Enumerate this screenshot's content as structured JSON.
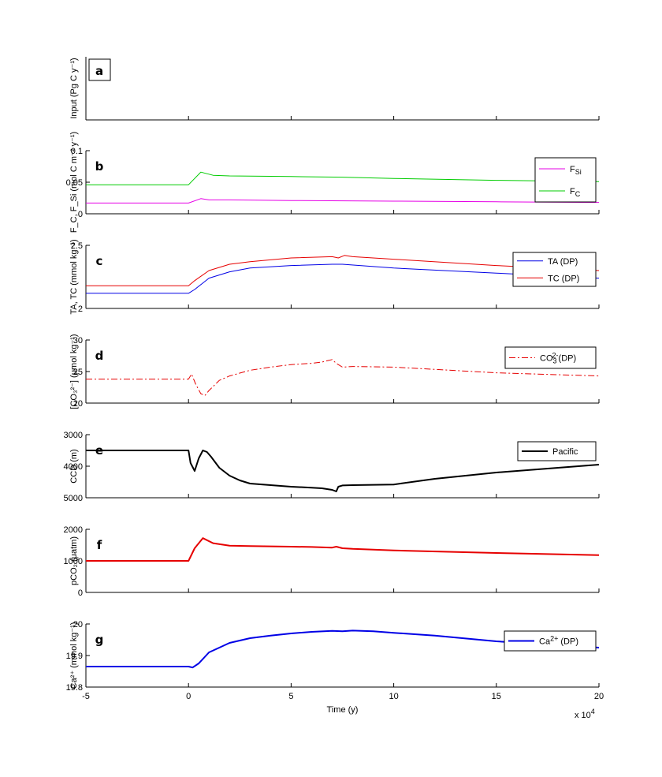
{
  "xaxis": {
    "xlabel": "Time (y)",
    "xlim": [
      -5,
      20
    ],
    "ticks": [
      -5,
      0,
      5,
      10,
      15,
      20
    ],
    "tick_labels": [
      "-5",
      "0",
      "5",
      "10",
      "15",
      "20"
    ],
    "multiplier": "x 10",
    "multiplier_exp": "4"
  },
  "chart_data": [
    {
      "type": "line",
      "panel": "a",
      "ylabel": "Input (Pg C y⁻¹)",
      "yticks": [],
      "ylim": [
        0,
        1
      ],
      "legend": false,
      "series": []
    },
    {
      "type": "line",
      "panel": "b",
      "ylabel": "F_C, F_Si (mol C m⁻² y⁻¹)",
      "ylim": [
        0,
        0.1
      ],
      "yticks": [
        0,
        0.05,
        0.1
      ],
      "ytick_labels": [
        "0",
        "0.05",
        "0.1"
      ],
      "legend": true,
      "series": [
        {
          "name": "F_Si",
          "legend_main": "F",
          "legend_sub": "Si",
          "color": "#e600e6",
          "width": 1,
          "dash": "",
          "x": [
            -5,
            0,
            0.6,
            1,
            2,
            5,
            10,
            15,
            20
          ],
          "y": [
            0.017,
            0.017,
            0.024,
            0.022,
            0.022,
            0.021,
            0.02,
            0.019,
            0.018
          ]
        },
        {
          "name": "F_C",
          "legend_main": "F",
          "legend_sub": "C",
          "color": "#00cc00",
          "width": 1,
          "dash": "",
          "x": [
            -5,
            0,
            0.6,
            1.2,
            2,
            5,
            7.5,
            10,
            15,
            20
          ],
          "y": [
            0.046,
            0.046,
            0.066,
            0.061,
            0.06,
            0.059,
            0.058,
            0.056,
            0.053,
            0.051
          ]
        }
      ]
    },
    {
      "type": "line",
      "panel": "c",
      "ylabel": "TA, TC (mmol kg⁻¹)",
      "ylim": [
        2,
        2.5
      ],
      "yticks": [
        2,
        2.5
      ],
      "ytick_labels": [
        "2",
        "2.5"
      ],
      "legend": true,
      "series": [
        {
          "name": "TA (DP)",
          "legend_main": "TA (DP)",
          "legend_sub": "",
          "color": "#0000e6",
          "width": 1,
          "dash": "",
          "x": [
            -5,
            0,
            0.3,
            1,
            2,
            3,
            5,
            7,
            7.5,
            10,
            15,
            20
          ],
          "y": [
            2.12,
            2.12,
            2.15,
            2.24,
            2.29,
            2.32,
            2.34,
            2.35,
            2.35,
            2.32,
            2.28,
            2.24
          ]
        },
        {
          "name": "TC (DP)",
          "legend_main": "TC (DP)",
          "legend_sub": "",
          "color": "#e60000",
          "width": 1,
          "dash": "",
          "x": [
            -5,
            0,
            0.3,
            1,
            2,
            3,
            5,
            7,
            7.3,
            7.6,
            8,
            10,
            15,
            20
          ],
          "y": [
            2.18,
            2.18,
            2.22,
            2.3,
            2.35,
            2.37,
            2.4,
            2.41,
            2.4,
            2.42,
            2.41,
            2.39,
            2.34,
            2.3
          ]
        }
      ]
    },
    {
      "type": "line",
      "panel": "d",
      "ylabel": "[CO₃²⁻] (μmol kg⁻¹)",
      "ylim": [
        20,
        30
      ],
      "yticks": [
        20,
        25,
        30
      ],
      "ytick_labels": [
        "20",
        "25",
        "30"
      ],
      "legend": true,
      "series": [
        {
          "name": "CO3 2- (DP)",
          "legend_main": "CO",
          "legend_sub": "3",
          "legend_sup": "2-",
          "legend_tail": "(DP)",
          "color": "#e60000",
          "width": 1,
          "dash": "8,3,2,3",
          "x": [
            -5,
            0,
            0.15,
            0.35,
            0.6,
            0.8,
            1,
            1.5,
            2,
            3,
            4,
            5,
            6,
            6.5,
            7,
            7.2,
            7.5,
            8,
            10,
            15,
            20
          ],
          "y": [
            23.8,
            23.8,
            24.6,
            23.0,
            21.5,
            21.2,
            22.0,
            23.6,
            24.3,
            25.2,
            25.7,
            26.1,
            26.3,
            26.5,
            26.9,
            26.3,
            25.7,
            25.8,
            25.7,
            24.8,
            24.3
          ]
        }
      ]
    },
    {
      "type": "line",
      "panel": "e",
      "ylabel": "CCD (m)",
      "ylim": [
        3000,
        5000
      ],
      "yreversed": true,
      "yticks": [
        3000,
        4000,
        5000
      ],
      "ytick_labels": [
        "3000",
        "4000",
        "5000"
      ],
      "legend": true,
      "series": [
        {
          "name": "Pacific",
          "legend_main": "Pacific",
          "legend_sub": "",
          "color": "#000000",
          "width": 2,
          "dash": "",
          "x": [
            -5,
            0,
            0.1,
            0.3,
            0.5,
            0.7,
            0.9,
            1.1,
            1.5,
            2,
            2.5,
            3,
            4,
            5,
            6,
            6.5,
            7,
            7.2,
            7.3,
            7.5,
            8,
            10,
            12,
            15,
            20
          ],
          "y": [
            3500,
            3500,
            3900,
            4150,
            3750,
            3500,
            3550,
            3700,
            4050,
            4300,
            4450,
            4550,
            4600,
            4650,
            4680,
            4700,
            4750,
            4800,
            4650,
            4610,
            4600,
            4580,
            4400,
            4200,
            3950
          ]
        }
      ]
    },
    {
      "type": "line",
      "panel": "f",
      "ylabel": "pCO₂ (μatm)",
      "ylim": [
        0,
        2000
      ],
      "yticks": [
        0,
        1000,
        2000
      ],
      "ytick_labels": [
        "0",
        "1000",
        "2000"
      ],
      "legend": false,
      "series": [
        {
          "name": "pCO2",
          "color": "#e60000",
          "width": 2,
          "dash": "",
          "x": [
            -5,
            0,
            0.3,
            0.7,
            1.2,
            2,
            3,
            5,
            6,
            7,
            7.2,
            7.5,
            8,
            10,
            15,
            20
          ],
          "y": [
            1000,
            1000,
            1400,
            1720,
            1560,
            1480,
            1470,
            1450,
            1440,
            1420,
            1450,
            1400,
            1380,
            1330,
            1250,
            1180
          ]
        }
      ]
    },
    {
      "type": "line",
      "panel": "g",
      "ylabel": "Ca²⁺ (mmol kg⁻¹)",
      "ylim": [
        19.8,
        20
      ],
      "yticks": [
        19.8,
        19.9,
        20
      ],
      "ytick_labels": [
        "19.8",
        "19.9",
        "20"
      ],
      "legend": true,
      "series": [
        {
          "name": "Ca2+ (DP)",
          "legend_main": "Ca",
          "legend_sub": "",
          "legend_sup": "2+",
          "legend_tail": " (DP)",
          "color": "#0000e6",
          "width": 2,
          "dash": "",
          "x": [
            -5,
            0,
            0.2,
            0.5,
            1,
            1.5,
            2,
            3,
            4,
            5,
            6,
            7,
            7.5,
            8,
            9,
            10,
            12,
            15,
            20
          ],
          "y": [
            19.865,
            19.865,
            19.862,
            19.875,
            19.91,
            19.925,
            19.94,
            19.955,
            19.963,
            19.97,
            19.975,
            19.978,
            19.977,
            19.979,
            19.977,
            19.972,
            19.963,
            19.945,
            19.925
          ]
        }
      ]
    }
  ]
}
